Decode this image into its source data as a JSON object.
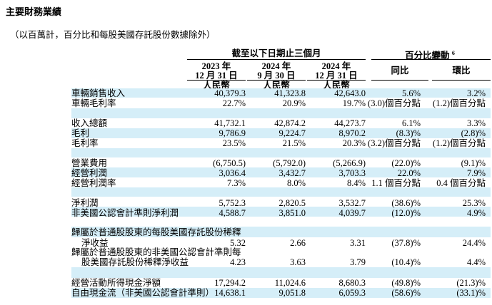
{
  "title": "主要財務業績",
  "subtitle": "（以百萬計，百分比和每股美國存託股份數據除外）",
  "header": {
    "period_group": "截至以下日期止三個月",
    "change_group": "百分比變動",
    "change_note": "6",
    "columns": [
      {
        "year": "2023 年",
        "date": "12 月 31 日",
        "currency": "人民幣"
      },
      {
        "year": "2024 年",
        "date": "9 月 30 日",
        "currency": "人民幣"
      },
      {
        "year": "2024 年",
        "date": "12 月 31 日",
        "currency": "人民幣"
      }
    ],
    "yoy": "同比",
    "qoq": "環比"
  },
  "rows": [
    {
      "label": "車輛銷售收入",
      "v1": "40,379.3",
      "v2": "41,323.8",
      "v3": "42,643.0",
      "yoy": "5.6%",
      "qoq": "3.2%"
    },
    {
      "label": "車輛毛利率",
      "v1": "22.7%",
      "v2": "20.9%",
      "v3": "19.7%",
      "yoy": "(3.0)個百分點",
      "qoq": "(1.2)個百分點"
    },
    {
      "label": "收入總額",
      "v1": "41,732.1",
      "v2": "42,874.2",
      "v3": "44,273.7",
      "yoy": "6.1%",
      "qoq": "3.3%"
    },
    {
      "label": "毛利",
      "v1": "9,786.9",
      "v2": "9,224.7",
      "v3": "8,970.2",
      "yoy": "(8.3)%",
      "qoq": "(2.8)%"
    },
    {
      "label": "毛利率",
      "v1": "23.5%",
      "v2": "21.5%",
      "v3": "20.3%",
      "yoy": "(3.2)個百分點",
      "qoq": "(1.2)個百分點"
    },
    {
      "label": "營業費用",
      "v1": "(6,750.5)",
      "v2": "(5,792.0)",
      "v3": "(5,266.9)",
      "yoy": "(22.0)%",
      "qoq": "(9.1)%"
    },
    {
      "label": "經營利潤",
      "v1": "3,036.4",
      "v2": "3,432.7",
      "v3": "3,703.3",
      "yoy": "22.0%",
      "qoq": "7.9%"
    },
    {
      "label": "經營利潤率",
      "v1": "7.3%",
      "v2": "8.0%",
      "v3": "8.4%",
      "yoy": "1.1 個百分點",
      "qoq": "0.4 個百分點"
    },
    {
      "label": "淨利潤",
      "v1": "5,752.3",
      "v2": "2,820.5",
      "v3": "3,532.7",
      "yoy": "(38.6)%",
      "qoq": "25.3%"
    },
    {
      "label": "非美國公認會計準則淨利潤",
      "v1": "4,588.7",
      "v2": "3,851.0",
      "v3": "4,039.7",
      "yoy": "(12.0)%",
      "qoq": "4.9%"
    },
    {
      "label": "歸屬於普通股股東的每股美國存託股份稀釋",
      "label2": "淨收益",
      "v1": "5.32",
      "v2": "2.66",
      "v3": "3.31",
      "yoy": "(37.8)%",
      "qoq": "24.4%"
    },
    {
      "label": "歸屬於普通股股東的非美國公認會計準則每",
      "label2": "股美國存託股份稀釋淨收益",
      "v1": "4.23",
      "v2": "3.63",
      "v3": "3.79",
      "yoy": "(10.4)%",
      "qoq": "4.4%"
    },
    {
      "label": "經營活動所得現金淨額",
      "v1": "17,294.2",
      "v2": "11,024.6",
      "v3": "8,680.3",
      "yoy": "(49.8)%",
      "qoq": "(21.3)%"
    },
    {
      "label": "自由現金流（非美國公認會計準則）",
      "v1": "14,638.1",
      "v2": "9,051.8",
      "v3": "6,059.3",
      "yoy": "(58.6)%",
      "qoq": "(33.1)%"
    }
  ]
}
